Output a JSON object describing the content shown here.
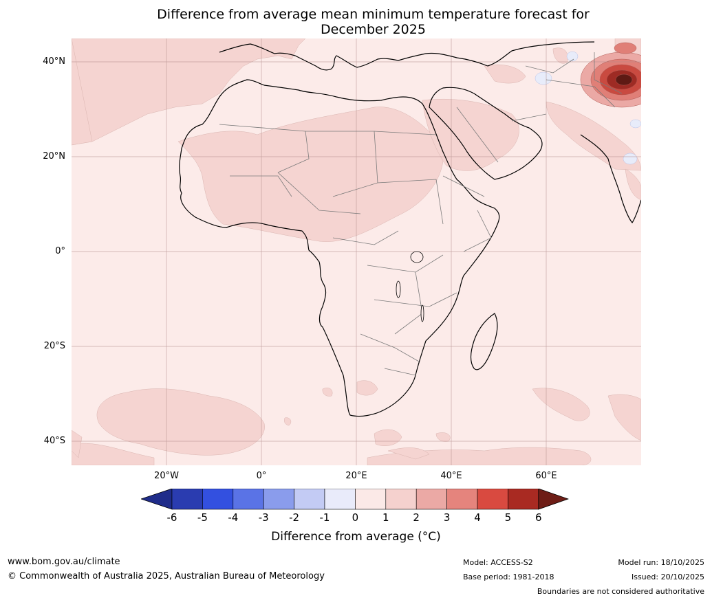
{
  "title_line1": "Difference from average mean minimum temperature forecast for",
  "title_line2": "December 2025",
  "latitude_labels": [
    "40°N",
    "20°N",
    "0°",
    "20°S",
    "40°S"
  ],
  "longitude_labels": [
    "20°W",
    "0°",
    "20°E",
    "40°E",
    "60°E"
  ],
  "colorbar": {
    "ticks": [
      "-6",
      "-5",
      "-4",
      "-3",
      "-2",
      "-1",
      "0",
      "1",
      "2",
      "3",
      "4",
      "5",
      "6"
    ],
    "label": "Difference from average (°C)",
    "colors": [
      "#1f2c8a",
      "#2a3cb0",
      "#3350e0",
      "#5a73e6",
      "#8a9cec",
      "#c3cbf4",
      "#e9ebfa",
      "#fbe9e7",
      "#f5d1ce",
      "#eba9a5",
      "#e5847d",
      "#d94a40",
      "#a92a22",
      "#6e1d16"
    ]
  },
  "map_colors": {
    "ocean": "#fcebe9",
    "anomaly_1_2": "#f5d4d1",
    "anomaly_2_3": "#eba9a5",
    "anomaly_3_4": "#e07f77",
    "anomaly_4_5": "#c94a40",
    "anomaly_5_6": "#9e2b24",
    "anomaly_gt6": "#5e1a14",
    "cool": "#e8ecfa"
  },
  "footer": {
    "website": "www.bom.gov.au/climate",
    "copyright": "© Commonwealth of Australia 2025, Australian Bureau of Meteorology",
    "model": "Model: ACCESS-S2",
    "base_period": "Base period: 1981-2018",
    "model_run": "Model run: 18/10/2025",
    "issued": "Issued: 20/10/2025",
    "disclaimer": "Boundaries are not considered authoritative"
  }
}
